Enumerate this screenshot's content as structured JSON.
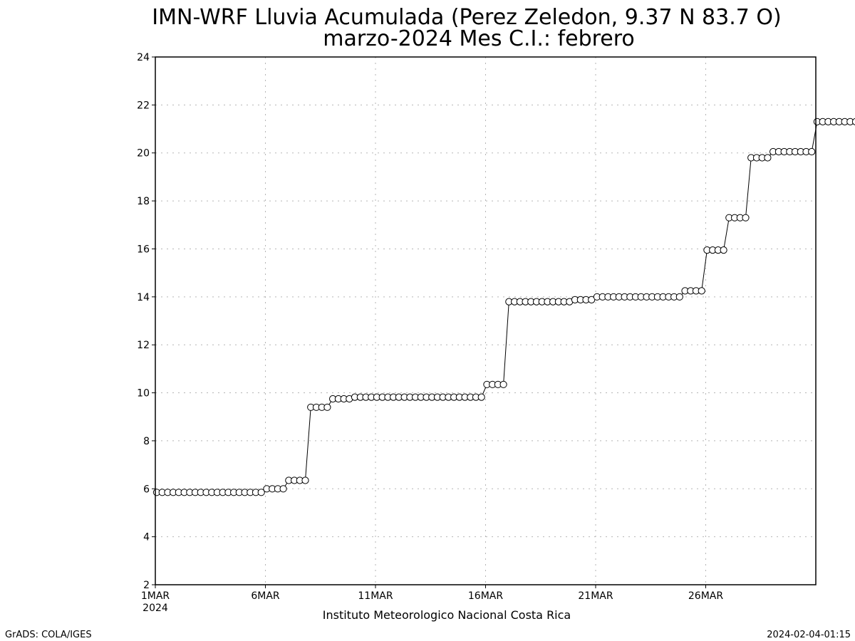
{
  "chart_data": {
    "type": "line",
    "title": "IMN-WRF  Lluvia Acumulada (Perez Zeledon, 9.37  N 83.7  O)",
    "subtitle": "marzo-2024 Mes C.I.: febrero",
    "xlabel": "Instituto Meteorologico Nacional Costa Rica",
    "ylabel": "",
    "ylim": [
      2,
      24
    ],
    "yticks": [
      2,
      4,
      6,
      8,
      10,
      12,
      14,
      16,
      18,
      20,
      22,
      24
    ],
    "xlim": [
      0,
      30
    ],
    "xticks": [
      {
        "day": 0,
        "label": "1MAR",
        "sub": "2024"
      },
      {
        "day": 5,
        "label": "6MAR"
      },
      {
        "day": 10,
        "label": "11MAR"
      },
      {
        "day": 15,
        "label": "16MAR"
      },
      {
        "day": 20,
        "label": "21MAR"
      },
      {
        "day": 25,
        "label": "26MAR"
      }
    ],
    "grid": true,
    "x_step_days": 0.25,
    "series": [
      {
        "values": [
          5.85,
          5.85,
          5.85,
          5.85,
          5.85,
          5.85,
          5.85,
          5.85,
          5.85,
          5.85,
          5.85,
          5.85,
          5.85,
          5.85,
          5.85,
          5.85,
          5.85,
          5.85,
          5.85,
          5.85,
          6.0,
          6.0,
          6.0,
          6.0,
          6.35,
          6.35,
          6.35,
          6.35,
          9.4,
          9.4,
          9.4,
          9.4,
          9.75,
          9.75,
          9.75,
          9.75,
          9.82,
          9.82,
          9.82,
          9.82,
          9.82,
          9.82,
          9.82,
          9.82,
          9.82,
          9.82,
          9.82,
          9.82,
          9.82,
          9.82,
          9.82,
          9.82,
          9.82,
          9.82,
          9.82,
          9.82,
          9.82,
          9.82,
          9.82,
          9.82,
          10.35,
          10.35,
          10.35,
          10.35,
          13.8,
          13.8,
          13.8,
          13.8,
          13.8,
          13.8,
          13.8,
          13.8,
          13.8,
          13.8,
          13.8,
          13.8,
          13.88,
          13.88,
          13.88,
          13.88,
          14.0,
          14.0,
          14.0,
          14.0,
          14.0,
          14.0,
          14.0,
          14.0,
          14.0,
          14.0,
          14.0,
          14.0,
          14.0,
          14.0,
          14.0,
          14.0,
          14.25,
          14.25,
          14.25,
          14.25,
          15.95,
          15.95,
          15.95,
          15.95,
          17.3,
          17.3,
          17.3,
          17.3,
          19.8,
          19.8,
          19.8,
          19.8,
          20.05,
          20.05,
          20.05,
          20.05,
          20.05,
          20.05,
          20.05,
          20.05,
          21.3,
          21.3,
          21.3,
          21.3,
          21.3,
          21.3,
          21.3,
          21.3,
          21.3,
          21.3,
          21.3,
          21.3
        ]
      }
    ]
  },
  "footer": {
    "left": "GrADS: COLA/IGES",
    "right": "2024-02-04-01:15"
  }
}
